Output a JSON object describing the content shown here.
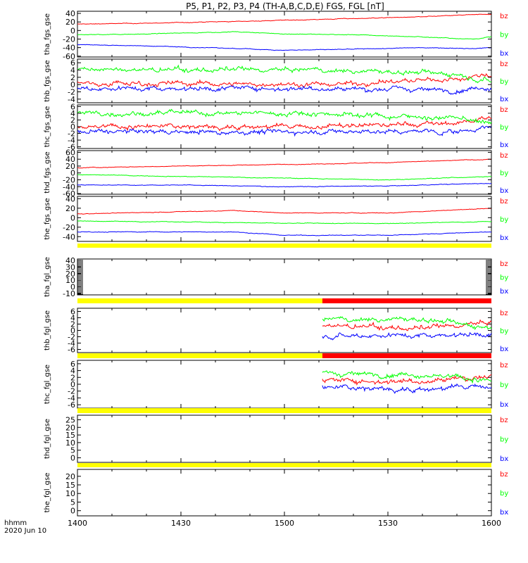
{
  "title": "P5, P1, P2, P3, P4 (TH-A,B,C,D,E) FGS, FGL [nT]",
  "footer": {
    "line1": "hhmm",
    "line2": "2020 Jun 10"
  },
  "colors": {
    "bz": "#ff0000",
    "by": "#00ff00",
    "bx": "#0000ff",
    "bar_yellow": "#ffff00",
    "bar_red": "#ff0000"
  },
  "chart_data": {
    "type": "line",
    "x_ticks": [
      "1400",
      "1430",
      "1500",
      "1530",
      "1600"
    ],
    "xlim": [
      "14:00",
      "16:00"
    ],
    "panels": [
      {
        "ylabel": "tha_fgs_gse",
        "yticks": [
          "40",
          "20",
          "0",
          "-20",
          "-40",
          "-60"
        ],
        "ylim": [
          -62,
          45
        ],
        "data_start": "14:00",
        "legend": [
          "bz",
          "by",
          "bx"
        ],
        "series": [
          {
            "name": "bz",
            "x": [
              "14:00",
              "14:20",
              "14:45",
              "15:00",
              "15:20",
              "15:40",
              "15:55",
              "16:00"
            ],
            "y": [
              15,
              17,
              21,
              24,
              28,
              32,
              37,
              38
            ]
          },
          {
            "name": "by",
            "x": [
              "14:00",
              "14:20",
              "14:45",
              "15:00",
              "15:20",
              "15:40",
              "15:55",
              "16:00"
            ],
            "y": [
              -10,
              -8,
              -3,
              -8,
              -10,
              -15,
              -20,
              -15
            ]
          },
          {
            "name": "bx",
            "x": [
              "14:00",
              "14:20",
              "14:45",
              "15:00",
              "15:20",
              "15:40",
              "15:55",
              "16:00"
            ],
            "y": [
              -33,
              -36,
              -42,
              -46,
              -44,
              -40,
              -42,
              -40
            ]
          }
        ]
      },
      {
        "ylabel": "thb_fgs_gse",
        "yticks": [
          "6",
          "4",
          "2",
          "0",
          "-2",
          "-4"
        ],
        "ylim": [
          -5,
          7
        ],
        "data_start": "14:00",
        "legend": [
          "bz",
          "by",
          "bx"
        ],
        "series": [
          {
            "name": "bz",
            "x": [
              "14:00",
              "15:10",
              "15:50",
              "16:00"
            ],
            "y": [
              0.5,
              0,
              1.5,
              3
            ]
          },
          {
            "name": "by",
            "x": [
              "14:00",
              "15:10",
              "15:50",
              "16:00"
            ],
            "y": [
              4,
              4,
              3,
              1
            ]
          },
          {
            "name": "bx",
            "x": [
              "14:00",
              "15:10",
              "15:50",
              "16:00"
            ],
            "y": [
              -1,
              -1,
              -1.5,
              -0.5
            ]
          }
        ]
      },
      {
        "ylabel": "thc_fgs_gse",
        "yticks": [
          "6",
          "4",
          "2",
          "0",
          "-2",
          "-4",
          "-6"
        ],
        "ylim": [
          -6.5,
          6.5
        ],
        "data_start": "14:00",
        "legend": [
          "bz",
          "by",
          "bx"
        ],
        "series": [
          {
            "name": "bz",
            "x": [
              "14:00",
              "15:10",
              "15:50",
              "16:00"
            ],
            "y": [
              0,
              0,
              1,
              3
            ]
          },
          {
            "name": "by",
            "x": [
              "14:00",
              "15:10",
              "15:50",
              "16:00"
            ],
            "y": [
              4,
              4,
              2.5,
              1
            ]
          },
          {
            "name": "bx",
            "x": [
              "14:00",
              "15:10",
              "15:50",
              "16:00"
            ],
            "y": [
              -1.5,
              -1.5,
              -1.5,
              0
            ]
          }
        ]
      },
      {
        "ylabel": "thd_fgs_gse",
        "yticks": [
          "60",
          "40",
          "20",
          "0",
          "-20",
          "-40",
          "-60"
        ],
        "ylim": [
          -62,
          65
        ],
        "data_start": "14:00",
        "legend": [
          "bz",
          "by",
          "bx"
        ],
        "series": [
          {
            "name": "bz",
            "x": [
              "14:00",
              "14:30",
              "15:00",
              "15:30",
              "16:00"
            ],
            "y": [
              15,
              20,
              25,
              30,
              40
            ]
          },
          {
            "name": "by",
            "x": [
              "14:00",
              "14:30",
              "15:00",
              "15:30",
              "16:00"
            ],
            "y": [
              -5,
              -10,
              -15,
              -20,
              -10
            ]
          },
          {
            "name": "bx",
            "x": [
              "14:00",
              "14:30",
              "15:00",
              "15:30",
              "16:00"
            ],
            "y": [
              -35,
              -35,
              -40,
              -38,
              -30
            ]
          }
        ]
      },
      {
        "ylabel": "the_fgs_gse",
        "yticks": [
          "40",
          "20",
          "0",
          "-20",
          "-40"
        ],
        "ylim": [
          -50,
          45
        ],
        "data_start": "14:00",
        "legend": [
          "bz",
          "by",
          "bx"
        ],
        "series": [
          {
            "name": "bz",
            "x": [
              "14:00",
              "14:45",
              "15:00",
              "15:30",
              "16:00"
            ],
            "y": [
              8,
              15,
              10,
              10,
              20
            ]
          },
          {
            "name": "by",
            "x": [
              "14:00",
              "14:45",
              "15:00",
              "15:30",
              "16:00"
            ],
            "y": [
              -7,
              -10,
              -12,
              -12,
              -8
            ]
          },
          {
            "name": "bx",
            "x": [
              "14:00",
              "14:45",
              "15:00",
              "15:30",
              "16:00"
            ],
            "y": [
              -30,
              -30,
              -37,
              -37,
              -30
            ]
          }
        ]
      },
      {
        "ylabel": "tha_fgl_gse",
        "yticks": [
          "40",
          "30",
          "20",
          "10",
          "0",
          "-10"
        ],
        "ylim": [
          -12,
          42
        ],
        "data_start": null,
        "legend": [
          "bz",
          "by",
          "bx"
        ],
        "series": [],
        "bar": [
          {
            "from": "14:00",
            "to": "16:00",
            "color": "yellow"
          }
        ]
      },
      {
        "ylabel": "thb_fgl_gse",
        "yticks": [
          "6",
          "4",
          "2",
          "0",
          "-2",
          "-4",
          "-6"
        ],
        "ylim": [
          -7,
          7
        ],
        "data_start": "15:11",
        "legend": [
          "bz",
          "by",
          "bx"
        ],
        "series": [
          {
            "name": "bz",
            "x": [
              "15:11",
              "15:40",
              "16:00"
            ],
            "y": [
              1.5,
              0.5,
              2.5
            ]
          },
          {
            "name": "by",
            "x": [
              "15:11",
              "15:40",
              "16:00"
            ],
            "y": [
              3.5,
              3.5,
              1
            ]
          },
          {
            "name": "bx",
            "x": [
              "15:11",
              "15:40",
              "16:00"
            ],
            "y": [
              -1.5,
              -1.5,
              -1
            ]
          }
        ],
        "bar": [
          {
            "from": "14:00",
            "to": "15:11",
            "color": "yellow"
          },
          {
            "from": "15:11",
            "to": "16:00",
            "color": "red"
          }
        ]
      },
      {
        "ylabel": "thc_fgl_gse",
        "yticks": [
          "6",
          "4",
          "2",
          "0",
          "-2",
          "-4",
          "-6"
        ],
        "ylim": [
          -7,
          7
        ],
        "data_start": "15:11",
        "legend": [
          "bz",
          "by",
          "bx"
        ],
        "series": [
          {
            "name": "bz",
            "x": [
              "15:11",
              "15:40",
              "16:00"
            ],
            "y": [
              1,
              1,
              2.5
            ]
          },
          {
            "name": "by",
            "x": [
              "15:11",
              "15:40",
              "16:00"
            ],
            "y": [
              3,
              3,
              1
            ]
          },
          {
            "name": "bx",
            "x": [
              "15:11",
              "15:40",
              "16:00"
            ],
            "y": [
              -1,
              -1.5,
              -0.5
            ]
          }
        ],
        "bar": [
          {
            "from": "14:00",
            "to": "15:11",
            "color": "yellow"
          },
          {
            "from": "15:11",
            "to": "16:00",
            "color": "red"
          }
        ]
      },
      {
        "ylabel": "thd_fgl_gse",
        "yticks": [
          "25",
          "20",
          "15",
          "10",
          "5",
          "0"
        ],
        "ylim": [
          -3,
          28
        ],
        "data_start": null,
        "legend": [
          "bz",
          "by",
          "bx"
        ],
        "series": [],
        "bar": [
          {
            "from": "14:00",
            "to": "16:00",
            "color": "yellow"
          }
        ]
      },
      {
        "ylabel": "the_fgl_gse",
        "yticks": [
          "20",
          "15",
          "10",
          "5",
          "0"
        ],
        "ylim": [
          -3,
          24
        ],
        "data_start": null,
        "legend": [
          "bz",
          "by",
          "bx"
        ],
        "series": [],
        "bar": [
          {
            "from": "14:00",
            "to": "16:00",
            "color": "yellow"
          }
        ]
      }
    ]
  }
}
